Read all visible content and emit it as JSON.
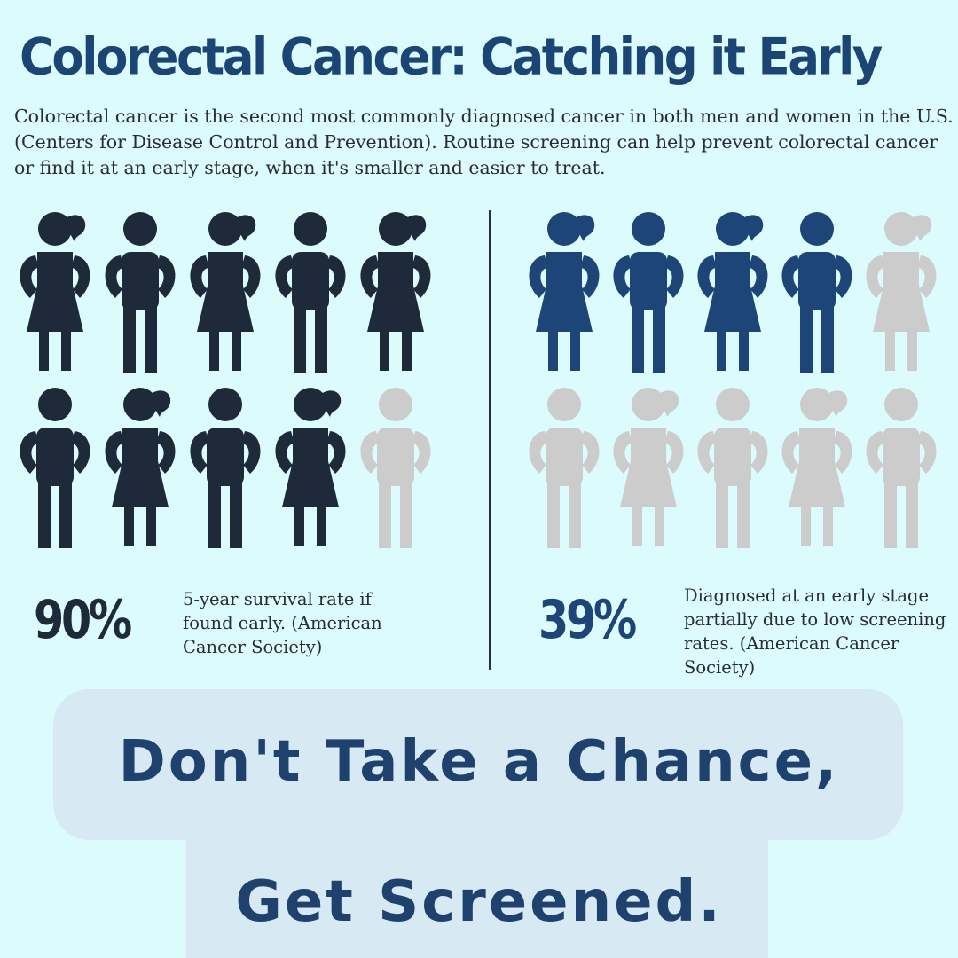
{
  "title": "Colorectal Cancer: Catching it Early",
  "intro": "Colorectal cancer is the second most commonly diagnosed cancer in both men and women in the U.S. (Centers for Disease Control and Prevention). Routine screening can help prevent colorectal cancer or find it at an early stage, when it's smaller and easier to treat.",
  "colors": {
    "background": "#dcfbfd",
    "dark_figure": "#1e2a3a",
    "blue_figure": "#1e4577",
    "gray_figure": "#cccccc",
    "title": "#1a4575"
  },
  "left_stat": {
    "percent": "90%",
    "description": "5-year survival rate if\nfound early. (American\nCancer Society)",
    "filled_fraction": 0.9,
    "figures": [
      {
        "gender": "female",
        "filled": true
      },
      {
        "gender": "male",
        "filled": true
      },
      {
        "gender": "female",
        "filled": true
      },
      {
        "gender": "male",
        "filled": true
      },
      {
        "gender": "female",
        "filled": true
      },
      {
        "gender": "male",
        "filled": true
      },
      {
        "gender": "female",
        "filled": true
      },
      {
        "gender": "male",
        "filled": true
      },
      {
        "gender": "female",
        "filled": true
      },
      {
        "gender": "male",
        "filled": false
      }
    ]
  },
  "right_stat": {
    "percent": "39%",
    "description": "Diagnosed at an early stage\npartially due to low screening\nrates. (American Cancer\nSociety)",
    "filled_fraction": 0.4,
    "figures": [
      {
        "gender": "female",
        "filled": true
      },
      {
        "gender": "male",
        "filled": true
      },
      {
        "gender": "female",
        "filled": true
      },
      {
        "gender": "male",
        "filled": true
      },
      {
        "gender": "female",
        "filled": false
      },
      {
        "gender": "male",
        "filled": false
      },
      {
        "gender": "female",
        "filled": false
      },
      {
        "gender": "male",
        "filled": false
      },
      {
        "gender": "female",
        "filled": false
      },
      {
        "gender": "male",
        "filled": false
      }
    ]
  },
  "cta": {
    "line1": "Don't Take a Chance,",
    "line2": "Get Screened."
  }
}
